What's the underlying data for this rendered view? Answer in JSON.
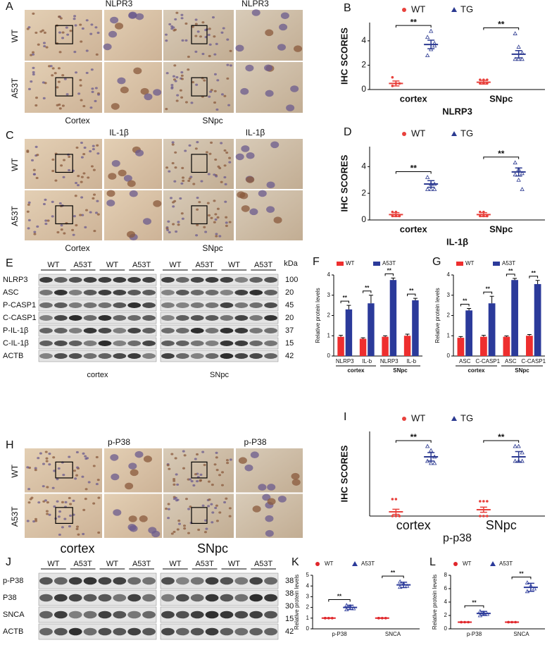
{
  "image_panels": [
    {
      "label": "A",
      "titles": [
        "NLPR3",
        "NLPR3"
      ],
      "rows": [
        "WT",
        "A53T"
      ],
      "captions": [
        "Cortex",
        "SNpc"
      ]
    },
    {
      "label": "C",
      "titles": [
        "IL-1β",
        "IL-1β"
      ],
      "rows": [
        "WT",
        "A53T"
      ],
      "captions": [
        "Cortex",
        "SNpc"
      ]
    },
    {
      "label": "H",
      "titles": [
        "p-P38",
        "p-P38"
      ],
      "rows": [
        "WT",
        "A53T"
      ],
      "captions": [
        "cortex",
        "SNpc"
      ]
    }
  ],
  "blots": [
    {
      "label": "E",
      "groups": [
        "WT",
        "A53T",
        "WT",
        "A53T",
        "WT",
        "A53T",
        "WT",
        "A53T"
      ],
      "unit": "kDa",
      "rows": [
        "NLRP3",
        "ASC",
        "P-CASP1",
        "C-CASP1",
        "P-IL-1β",
        "C-IL-1β",
        "ACTB"
      ],
      "sizes": [
        100,
        20,
        45,
        20,
        37,
        15,
        42
      ],
      "captions": [
        "cortex",
        "SNpc"
      ]
    },
    {
      "label": "J",
      "groups": [
        "WT",
        "A53T",
        "WT",
        "A53T",
        "WT",
        "A53T",
        "WT",
        "A53T"
      ],
      "rows": [
        "p-P38",
        "P38",
        "SNCA",
        "ACTB"
      ],
      "sizes": [
        38,
        38,
        30,
        15,
        42
      ]
    }
  ],
  "chart_data": [
    {
      "type": "dot",
      "label": "B",
      "ylabel": "IHC SCORES",
      "xlabel": "NLRP3",
      "categories": [
        "cortex",
        "SNpc"
      ],
      "ylim": [
        0,
        5.5
      ],
      "yticks": [
        0,
        2,
        4
      ],
      "significance": [
        "**",
        "**"
      ],
      "series": [
        {
          "name": "WT",
          "color": "#e8413c",
          "means": [
            0.5,
            0.6
          ],
          "errors": [
            0.2,
            0.15
          ],
          "points": [
            [
              0.3,
              0.5,
              0.5,
              1.0,
              0.5,
              0.5
            ],
            [
              0.8,
              0.8,
              0.8,
              0.5,
              0.5,
              0.5
            ]
          ]
        },
        {
          "name": "TG",
          "color": "#2b3990",
          "means": [
            3.7,
            2.9
          ],
          "errors": [
            0.35,
            0.3
          ],
          "points": [
            [
              4.3,
              3.3,
              3.6,
              2.8,
              4.8,
              3.8
            ],
            [
              4.6,
              3.5,
              3.0,
              2.5,
              2.5,
              2.5
            ]
          ]
        }
      ]
    },
    {
      "type": "dot",
      "label": "D",
      "ylabel": "IHC SCORES",
      "xlabel": "IL-1β",
      "categories": [
        "cortex",
        "SNpc"
      ],
      "ylim": [
        0,
        5.5
      ],
      "yticks": [
        0,
        2,
        4
      ],
      "significance": [
        "**",
        "**"
      ],
      "series": [
        {
          "name": "WT",
          "color": "#e8413c",
          "means": [
            0.4,
            0.4
          ],
          "errors": [
            0.15,
            0.15
          ],
          "points": [
            [
              0.6,
              0.6,
              0.3,
              0.3,
              0.3,
              0.3
            ],
            [
              0.6,
              0.6,
              0.3,
              0.3,
              0.3,
              0.3
            ]
          ]
        },
        {
          "name": "TG",
          "color": "#2b3990",
          "means": [
            2.7,
            3.6
          ],
          "errors": [
            0.25,
            0.3
          ],
          "points": [
            [
              3.2,
              2.7,
              2.7,
              2.3,
              2.3,
              2.3
            ],
            [
              4.3,
              3.8,
              3.5,
              3.4,
              3.0,
              2.3
            ]
          ]
        }
      ]
    },
    {
      "type": "bar",
      "label": "F",
      "ylabel": "Relative protein levels",
      "categories": [
        "NLRP3",
        "IL-b",
        "NLRP3",
        "IL-b"
      ],
      "groups": [
        "cortex",
        "SNpc"
      ],
      "ylim": [
        0,
        4
      ],
      "yticks": [
        0,
        1,
        2,
        3,
        4
      ],
      "significance": [
        "**",
        "**",
        "**",
        "**"
      ],
      "series": [
        {
          "name": "WT",
          "color": "#ee2e2e",
          "values": [
            0.95,
            0.85,
            0.95,
            1.0
          ],
          "errors": [
            0.07,
            0.05,
            0.05,
            0.08
          ]
        },
        {
          "name": "A53T",
          "color": "#2b3a9a",
          "values": [
            2.3,
            2.6,
            3.75,
            2.75
          ],
          "errors": [
            0.2,
            0.4,
            0.1,
            0.1
          ]
        }
      ]
    },
    {
      "type": "bar",
      "label": "G",
      "ylabel": "Relative protein levels",
      "categories": [
        "ASC",
        "C-CASP1",
        "ASC",
        "C-CASP1"
      ],
      "groups": [
        "cortex",
        "SNpc"
      ],
      "ylim": [
        0,
        4
      ],
      "yticks": [
        0,
        1,
        2,
        3,
        4
      ],
      "significance": [
        "**",
        "**",
        "**",
        "**"
      ],
      "series": [
        {
          "name": "WT",
          "color": "#ee2e2e",
          "values": [
            0.9,
            0.95,
            0.95,
            1.0
          ],
          "errors": [
            0.06,
            0.07,
            0.04,
            0.06
          ]
        },
        {
          "name": "A53T",
          "color": "#2b3a9a",
          "values": [
            2.25,
            2.6,
            3.75,
            3.55
          ],
          "errors": [
            0.1,
            0.35,
            0.08,
            0.18
          ]
        }
      ]
    },
    {
      "type": "dot",
      "label": "I",
      "ylabel": "IHC SCORES",
      "xlabel": "p-p38",
      "categories": [
        "cortex",
        "SNpc"
      ],
      "ylim": [
        0,
        4
      ],
      "significance": [
        "**",
        "**"
      ],
      "series": [
        {
          "name": "WT",
          "color": "#e8413c",
          "means": [
            0.2,
            0.3
          ],
          "errors": [
            0.12,
            0.12
          ],
          "points": [
            [
              0.8,
              0.8,
              0,
              0,
              0,
              0
            ],
            [
              0.7,
              0.7,
              0.7,
              0,
              0,
              0
            ]
          ]
        },
        {
          "name": "TG",
          "color": "#2b3990",
          "means": [
            2.8,
            2.8
          ],
          "errors": [
            0.2,
            0.25
          ],
          "points": [
            [
              3.3,
              3.1,
              2.8,
              2.6,
              2.5,
              2.5
            ],
            [
              3.3,
              3.3,
              3.0,
              2.6,
              2.6,
              2.6
            ]
          ]
        }
      ]
    },
    {
      "type": "dot",
      "label": "K",
      "ylabel": "Relative protein levels",
      "categories": [
        "p-P38",
        "SNCA"
      ],
      "ylim": [
        0,
        5
      ],
      "yticks": [
        0,
        1,
        2,
        3,
        4,
        5
      ],
      "significance": [
        "**",
        "**"
      ],
      "series": [
        {
          "name": "WT",
          "color": "#e0262b",
          "means": [
            1,
            1
          ],
          "errors": [
            0,
            0
          ],
          "points": [
            [
              1,
              1,
              1,
              1
            ],
            [
              1,
              1,
              1,
              1
            ]
          ]
        },
        {
          "name": "A53T",
          "color": "#2b3a9a",
          "means": [
            2.0,
            4.1
          ],
          "errors": [
            0.2,
            0.25
          ],
          "points": [
            [
              2.2,
              2.1,
              1.9,
              1.8
            ],
            [
              4.4,
              4.2,
              4.0,
              3.9
            ]
          ]
        }
      ]
    },
    {
      "type": "dot",
      "label": "L",
      "ylabel": "Relative protein levels",
      "categories": [
        "p-P38",
        "SNCA"
      ],
      "ylim": [
        0,
        8
      ],
      "yticks": [
        0,
        2,
        4,
        6,
        8
      ],
      "significance": [
        "**",
        "**"
      ],
      "series": [
        {
          "name": "WT",
          "color": "#e0262b",
          "means": [
            1,
            1
          ],
          "errors": [
            0,
            0
          ],
          "points": [
            [
              1,
              1,
              1,
              1
            ],
            [
              1,
              1,
              1,
              1
            ]
          ]
        },
        {
          "name": "A53T",
          "color": "#2b3a9a",
          "means": [
            2.3,
            6.2
          ],
          "errors": [
            0.3,
            0.6
          ],
          "points": [
            [
              2.6,
              2.4,
              2.2,
              2.0
            ],
            [
              6.9,
              6.4,
              6.0,
              5.6
            ]
          ]
        }
      ]
    }
  ]
}
